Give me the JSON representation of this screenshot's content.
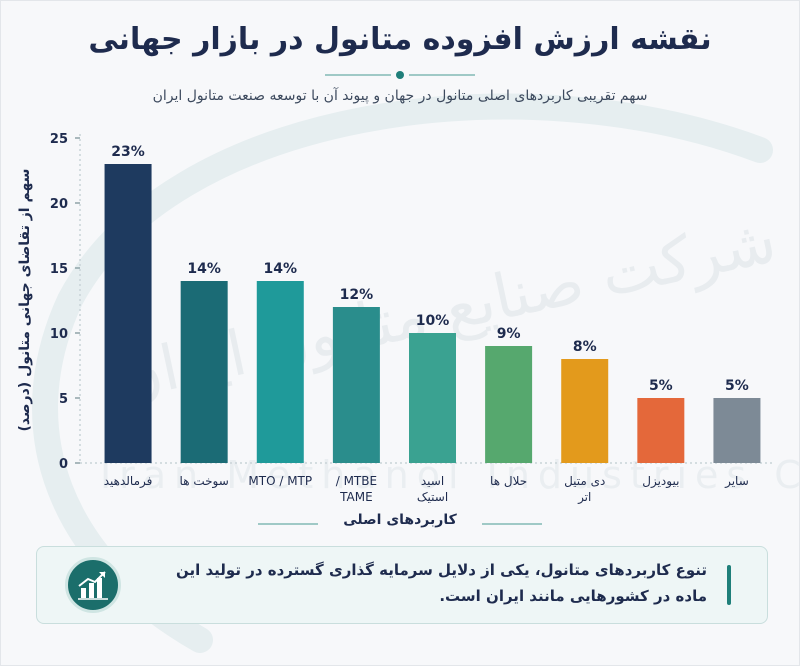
{
  "title": "نقشه ارزش افزوده متانول در بازار جهانی",
  "subtitle": "سهم تقریبی کاربردهای اصلی متانول در جهان و پیوند آن با توسعه صنعت متانول ایران",
  "watermark": {
    "persian": "شرکت صنایع متانول ایران",
    "english": "Iran Methanol Industries Co"
  },
  "note": {
    "text": "تنوع کاربردهای متانول، یکی از دلایل سرمایه گذاری گسترده در تولید این ماده در کشورهایی مانند ایران است.",
    "icon": "growth-chart-icon"
  },
  "colors": {
    "title": "#1e2b4e",
    "accent": "#1f7f7a"
  },
  "chart_data": {
    "type": "bar",
    "xlabel": "کاربردهای اصلی",
    "ylabel": "سهم از تقاضای جهانی متانول (درصد)",
    "ylim": [
      0,
      25
    ],
    "yticks": [
      "0",
      "5",
      "10",
      "15",
      "20",
      "25"
    ],
    "grid": false,
    "categories": [
      [
        "فرمالدهید"
      ],
      [
        "سوخت ها"
      ],
      [
        "MTO / MTP"
      ],
      [
        "MTBE /",
        "TAME"
      ],
      [
        "اسید",
        "استیک"
      ],
      [
        "حلال ها"
      ],
      [
        "دی متیل",
        "اتر"
      ],
      [
        "بیودیزل"
      ],
      [
        "سایر"
      ]
    ],
    "values": [
      23,
      14,
      14,
      12,
      10,
      9,
      8,
      5,
      5
    ],
    "value_labels": [
      "23%",
      "14%",
      "14%",
      "12%",
      "10%",
      "9%",
      "8%",
      "5%",
      "5%"
    ],
    "bar_colors": [
      "#1e3a5f",
      "#1b6b75",
      "#1f9a9a",
      "#2a8d8c",
      "#3aa291",
      "#56a86e",
      "#e39a1c",
      "#e4683a",
      "#7d8a96"
    ]
  }
}
